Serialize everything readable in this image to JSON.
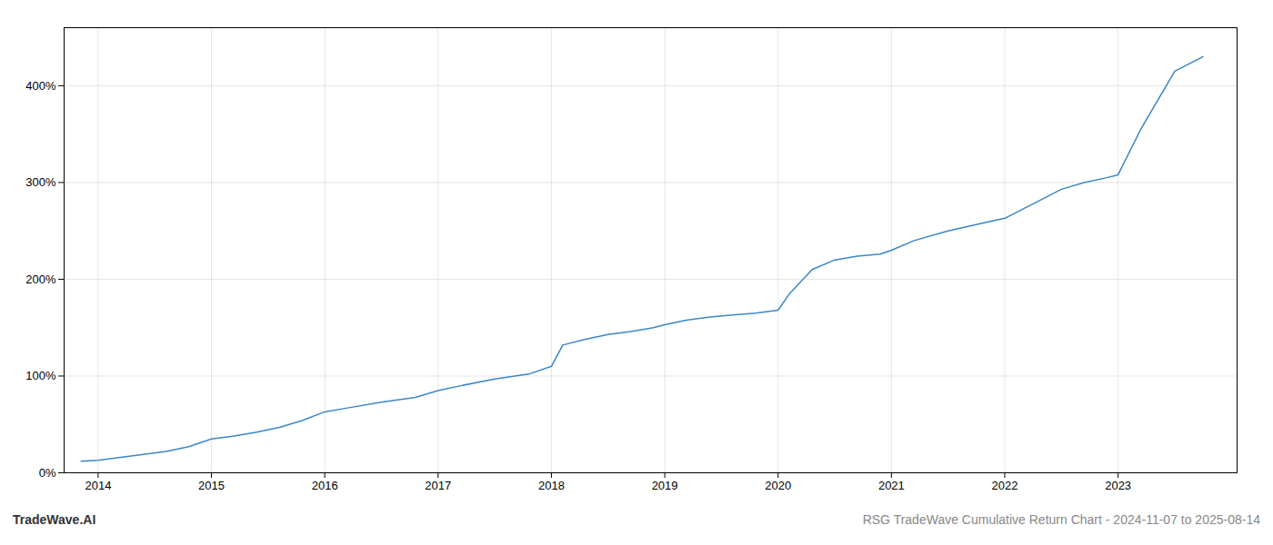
{
  "chart_data": {
    "type": "line",
    "title": "RSG TradeWave Cumulative Return Chart - 2024-11-07 to 2025-08-14",
    "annotations": [
      "TradeWave.AI"
    ],
    "x": [
      2013.85,
      2014.0,
      2014.2,
      2014.4,
      2014.6,
      2014.8,
      2015.0,
      2015.2,
      2015.4,
      2015.6,
      2015.8,
      2016.0,
      2016.2,
      2016.5,
      2016.8,
      2017.0,
      2017.2,
      2017.5,
      2017.8,
      2018.0,
      2018.1,
      2018.3,
      2018.5,
      2018.7,
      2018.9,
      2019.0,
      2019.2,
      2019.4,
      2019.6,
      2019.8,
      2020.0,
      2020.1,
      2020.3,
      2020.5,
      2020.7,
      2020.9,
      2021.0,
      2021.2,
      2021.5,
      2021.8,
      2022.0,
      2022.2,
      2022.5,
      2022.7,
      2022.9,
      2023.0,
      2023.2,
      2023.5,
      2023.75
    ],
    "values": [
      12,
      13,
      16,
      19,
      22,
      27,
      35,
      38,
      42,
      47,
      54,
      63,
      67,
      73,
      78,
      85,
      90,
      97,
      102,
      110,
      132,
      138,
      143,
      146,
      150,
      153,
      158,
      161,
      163,
      165,
      168,
      185,
      210,
      220,
      224,
      226,
      230,
      240,
      250,
      258,
      263,
      275,
      293,
      300,
      305,
      308,
      355,
      415,
      430
    ],
    "color": "#3a87c8",
    "xlim": [
      2013.7,
      2024.05
    ],
    "xticks": [
      2014,
      2015,
      2016,
      2017,
      2018,
      2019,
      2020,
      2021,
      2022,
      2023
    ],
    "ylim": [
      0,
      460
    ],
    "yticks": [
      {
        "value": 0,
        "label": "0%"
      },
      {
        "value": 100,
        "label": "100%"
      },
      {
        "value": 200,
        "label": "200%"
      },
      {
        "value": 300,
        "label": "300%"
      },
      {
        "value": 400,
        "label": "400%"
      }
    ],
    "grid": true
  }
}
